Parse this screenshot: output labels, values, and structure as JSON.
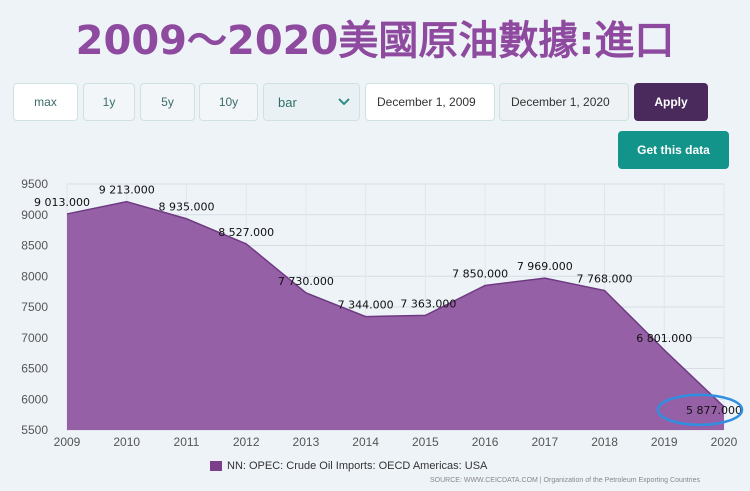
{
  "title": "2009～2020美國原油數據:進口",
  "controls": {
    "range_buttons": [
      "max",
      "1y",
      "5y",
      "10y"
    ],
    "chart_type": "bar",
    "start_date": "December 1, 2009",
    "end_date": "December 1, 2020",
    "apply_label": "Apply",
    "get_data_label": "Get this data"
  },
  "colors": {
    "area_fill": "#9660a6",
    "area_stroke": "#6e3a82",
    "highlight_circle": "#2f8fe0",
    "apply_bg": "#4a2a5c",
    "get_data_bg": "#12948a"
  },
  "chart_data": {
    "type": "area",
    "title": "2009～2020美國原油數據:進口",
    "x": [
      2009,
      2010,
      2011,
      2012,
      2013,
      2014,
      2015,
      2016,
      2017,
      2018,
      2019,
      2020
    ],
    "series": [
      {
        "name": "NN: OPEC: Crude Oil Imports: OECD Americas: USA",
        "values": [
          9013,
          9213,
          8935,
          8527,
          7730,
          7344,
          7363,
          7850,
          7969,
          7768,
          6801,
          5877
        ]
      }
    ],
    "data_labels": [
      "9 013.000",
      "9 213.000",
      "8 935.000",
      "8 527.000",
      "7 730.000",
      "7 344.000",
      "7 363.000",
      "7 850.000",
      "7 969.000",
      "7 768.000",
      "6 801.000",
      "5 877.000"
    ],
    "x_ticks": [
      "2009",
      "2010",
      "2011",
      "2012",
      "2013",
      "2014",
      "2015",
      "2016",
      "2017",
      "2018",
      "2019",
      "2020"
    ],
    "y_ticks": [
      "5500",
      "6000",
      "6500",
      "7000",
      "7500",
      "8000",
      "8500",
      "9000",
      "9500"
    ],
    "ylim": [
      5500,
      9500
    ],
    "grid": true,
    "highlighted_label": "5 877.000"
  },
  "legend": {
    "label": "NN: OPEC: Crude Oil Imports: OECD Americas: USA"
  },
  "source": "SOURCE: WWW.CEICDATA.COM | Organization of the Petroleum Exporting Countries"
}
